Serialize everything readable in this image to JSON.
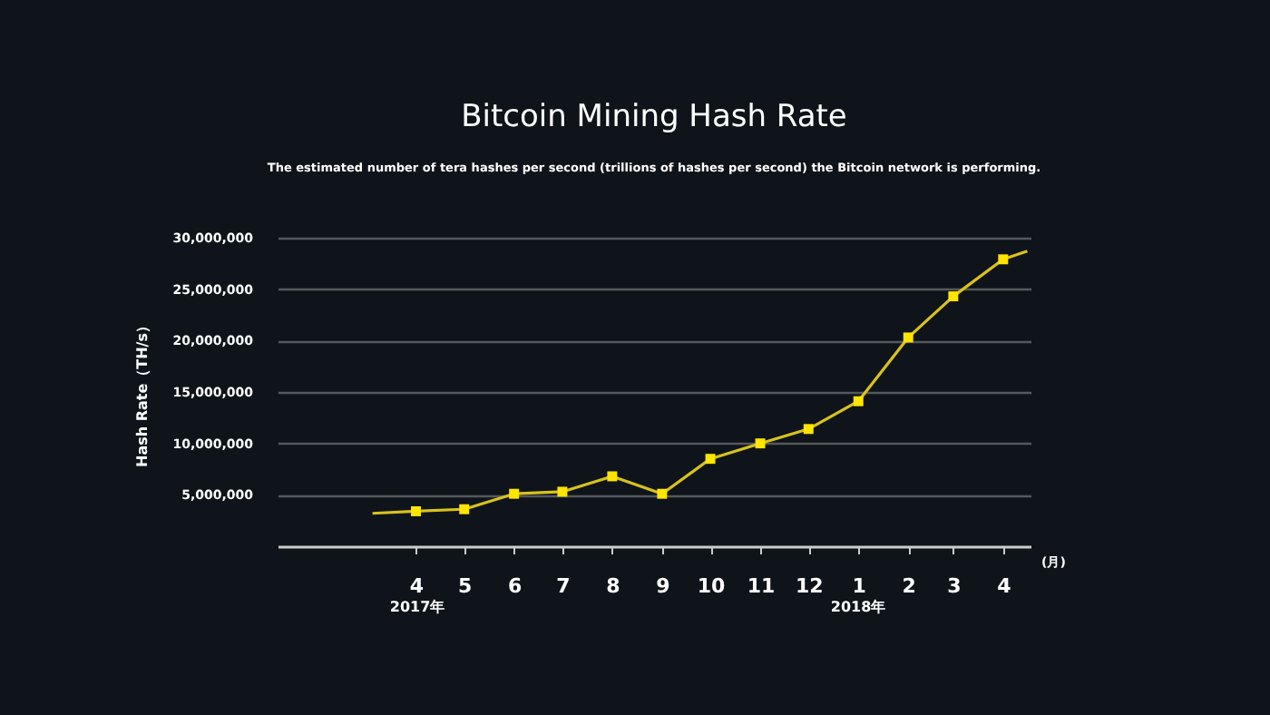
{
  "chart_data": {
    "type": "line",
    "title": "Bitcoin Mining Hash Rate",
    "subtitle": "The estimated number of tera hashes per second (trillions of hashes per second) the Bitcoin network is performing.",
    "ylabel": "Hash Rate（TH/s）",
    "xlim": [
      "2017-01-05",
      "2018-04-18"
    ],
    "xticks": [
      {
        "value": "2017-04",
        "label": "4"
      },
      {
        "value": "2017-05",
        "label": "5"
      },
      {
        "value": "2017-06",
        "label": "6"
      },
      {
        "value": "2017-07",
        "label": "7"
      },
      {
        "value": "2017-08",
        "label": "8"
      },
      {
        "value": "2017-09",
        "label": "9"
      },
      {
        "value": "2017-10",
        "label": "10"
      },
      {
        "value": "2017-11",
        "label": "11"
      },
      {
        "value": "2017-12",
        "label": "12"
      },
      {
        "value": "2018-01",
        "label": "1"
      },
      {
        "value": "2018-02",
        "label": "2"
      },
      {
        "value": "2018-03",
        "label": "3"
      },
      {
        "value": "2018-04",
        "label": "4"
      }
    ],
    "ylim": [
      0,
      30000000
    ],
    "yticks": [
      {
        "value": 5000000,
        "label": "5,000,000"
      },
      {
        "value": 10000000,
        "label": "10,000,000"
      },
      {
        "value": 15000000,
        "label": "15,000,000"
      },
      {
        "value": 20000000,
        "label": "20,000,000"
      },
      {
        "value": 25000000,
        "label": "25,000,000"
      },
      {
        "value": 30000000,
        "label": "30,000,000"
      }
    ],
    "grid": "y",
    "series": [
      {
        "type": "line",
        "marker": "none",
        "color": "#d9c21c",
        "x": [
          "2017-03-05",
          "2017-04",
          "2017-05",
          "2017-06",
          "2017-07",
          "2017-08",
          "2017-09",
          "2017-10",
          "2017-11",
          "2017-12",
          "2018-01",
          "2018-02",
          "2018-03",
          "2018-04",
          "2018-04-16"
        ],
        "values": [
          3200000,
          3400000,
          3600000,
          5100000,
          5300000,
          6800000,
          5100000,
          8500000,
          10000000,
          11400000,
          14100000,
          20300000,
          24300000,
          27900000,
          28700000
        ]
      },
      {
        "type": "scatter",
        "marker": "square",
        "color": "#ffe500",
        "x": [
          "2017-04",
          "2017-05",
          "2017-06",
          "2017-07",
          "2017-08",
          "2017-09",
          "2017-10",
          "2017-11",
          "2017-12",
          "2018-01",
          "2018-02",
          "2018-03",
          "2018-04"
        ],
        "values": [
          3400000,
          3600000,
          5100000,
          5300000,
          6800000,
          5100000,
          8500000,
          10000000,
          11400000,
          14100000,
          20300000,
          24300000,
          27900000
        ]
      }
    ],
    "annotations": [
      "(月)",
      "2017年",
      "2018年"
    ]
  }
}
